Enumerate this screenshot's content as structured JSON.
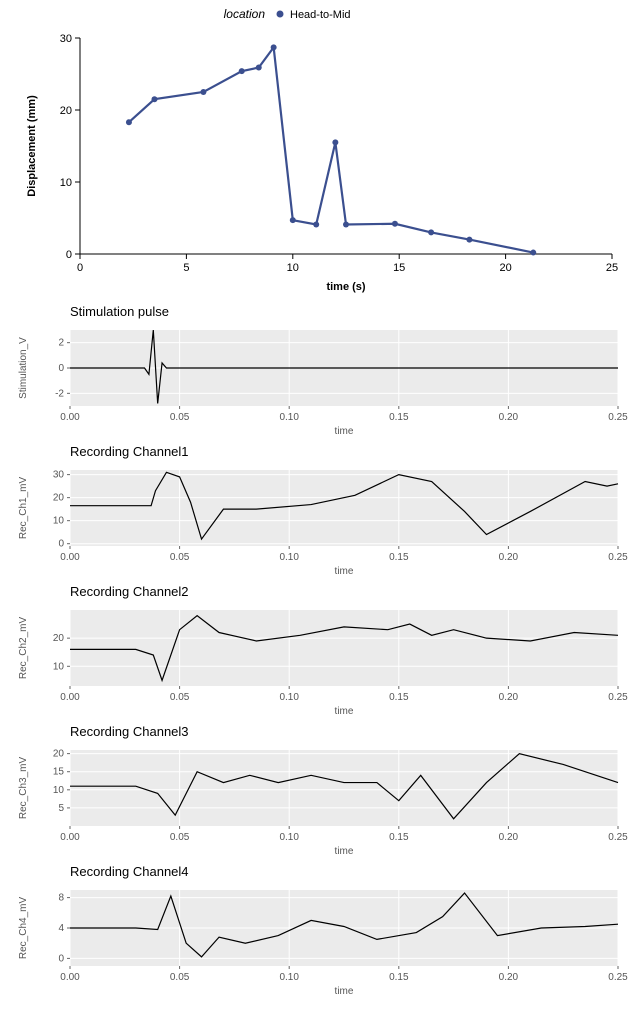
{
  "top_chart": {
    "type": "line",
    "legend_title": "location",
    "legend_item": "Head-to-Mid",
    "x_label": "time (s)",
    "y_label": "Displacement (mm)",
    "x_ticks": [
      0,
      5,
      10,
      15,
      20,
      25
    ],
    "y_ticks": [
      0,
      10,
      20,
      30
    ],
    "xlim": [
      0,
      25
    ],
    "ylim": [
      0,
      30
    ],
    "points_x": [
      2.3,
      3.5,
      5.8,
      7.6,
      8.4,
      9.1,
      10.0,
      11.1,
      12.0,
      12.5,
      14.8,
      16.5,
      18.3,
      21.3
    ],
    "points_y": [
      18.3,
      21.5,
      22.5,
      25.4,
      25.9,
      28.7,
      4.7,
      4.1,
      15.5,
      4.1,
      4.2,
      3.0,
      2.0,
      0.2
    ],
    "line_color": "#3b4f8f",
    "point_color": "#3b4f8f",
    "line_width": 2.2,
    "marker_radius": 3,
    "background_color": "#ffffff",
    "axis_color": "#000000",
    "tick_fontsize": 11,
    "label_fontsize": 12,
    "label_fontweight": "bold"
  },
  "strips": [
    {
      "title": "Stimulation pulse",
      "y_label": "Stimulation_V",
      "y_ticks": [
        -2,
        0,
        2
      ],
      "ylim": [
        -3,
        3
      ],
      "x": [
        0,
        0.034,
        0.036,
        0.038,
        0.04,
        0.042,
        0.044,
        0.25
      ],
      "y": [
        0,
        0,
        -0.5,
        3.0,
        -2.8,
        0.4,
        0,
        0
      ]
    },
    {
      "title": "Recording Channel1",
      "y_label": "Rec_Ch1_mV",
      "y_ticks": [
        0,
        10,
        20,
        30
      ],
      "ylim": [
        -1,
        32
      ],
      "x": [
        0,
        0.037,
        0.039,
        0.044,
        0.05,
        0.055,
        0.06,
        0.07,
        0.085,
        0.11,
        0.13,
        0.15,
        0.165,
        0.18,
        0.19,
        0.21,
        0.235,
        0.245,
        0.25
      ],
      "y": [
        16.5,
        16.5,
        23,
        31,
        29,
        18,
        2,
        15,
        15,
        17,
        21,
        30,
        27,
        14,
        4,
        14,
        27,
        25,
        26
      ]
    },
    {
      "title": "Recording Channel2",
      "y_label": "Rec_Ch2_mV",
      "y_ticks": [
        10,
        20
      ],
      "ylim": [
        3,
        30
      ],
      "x": [
        0,
        0.03,
        0.038,
        0.042,
        0.05,
        0.058,
        0.068,
        0.085,
        0.105,
        0.125,
        0.145,
        0.155,
        0.165,
        0.175,
        0.19,
        0.21,
        0.23,
        0.25
      ],
      "y": [
        16,
        16,
        14,
        5,
        23,
        28,
        22,
        19,
        21,
        24,
        23,
        25,
        21,
        23,
        20,
        19,
        22,
        21
      ]
    },
    {
      "title": "Recording Channel3",
      "y_label": "Rec_Ch3_mV",
      "y_ticks": [
        5,
        10,
        15,
        20
      ],
      "ylim": [
        0,
        21
      ],
      "x": [
        0,
        0.03,
        0.04,
        0.048,
        0.058,
        0.07,
        0.082,
        0.095,
        0.11,
        0.125,
        0.14,
        0.15,
        0.16,
        0.175,
        0.19,
        0.205,
        0.225,
        0.25
      ],
      "y": [
        11,
        11,
        9,
        3,
        15,
        12,
        14,
        12,
        14,
        12,
        12,
        7,
        14,
        2,
        12,
        20,
        17,
        12
      ]
    },
    {
      "title": "Recording Channel4",
      "y_label": "Rec_Ch4_mV",
      "y_ticks": [
        0,
        4,
        8
      ],
      "ylim": [
        -1,
        9
      ],
      "x": [
        0,
        0.03,
        0.04,
        0.046,
        0.053,
        0.06,
        0.068,
        0.08,
        0.095,
        0.11,
        0.125,
        0.14,
        0.158,
        0.17,
        0.18,
        0.195,
        0.215,
        0.235,
        0.25
      ],
      "y": [
        4,
        4,
        3.8,
        8.2,
        2,
        0.2,
        2.8,
        2,
        3.0,
        5.0,
        4.2,
        2.5,
        3.4,
        5.5,
        8.6,
        3.0,
        4.0,
        4.2,
        4.5
      ]
    }
  ],
  "strip_common": {
    "x_label": "time",
    "x_ticks": [
      0.0,
      0.05,
      0.1,
      0.15,
      0.2,
      0.25
    ],
    "xlim": [
      0,
      0.25
    ],
    "line_color": "#000000",
    "line_width": 1.2,
    "background_color": "#ebebeb",
    "grid_color": "#ffffff",
    "title_fontsize": 13,
    "tick_fontsize": 10
  }
}
